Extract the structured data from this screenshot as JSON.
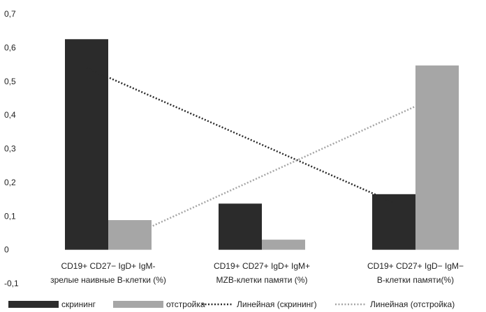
{
  "chart_data": {
    "type": "bar",
    "categories": [
      [
        "CD19+ CD27−  IgD+ IgM-",
        "зрелые наивные B-клетки (%)"
      ],
      [
        "CD19+ CD27+  IgD+ IgM+",
        "MZB-клетки памяти (%)"
      ],
      [
        "CD19+ CD27+  IgD−  IgM−",
        "B-клетки памяти(%)"
      ]
    ],
    "series": [
      {
        "name": "скрининг",
        "values": [
          0.625,
          0.137,
          0.165
        ],
        "color": "#2b2b2b"
      },
      {
        "name": "отстройка",
        "values": [
          0.088,
          0.03,
          0.547
        ],
        "color": "#a6a6a6"
      }
    ],
    "trendlines": [
      {
        "name": "Линейная (скрининг)",
        "series_index": 0,
        "start": 0.54,
        "end": 0.14,
        "color": "#2b2b2b"
      },
      {
        "name": "Линейная (отстройка)",
        "series_index": 1,
        "start": 0.04,
        "end": 0.455,
        "color": "#a6a6a6"
      }
    ],
    "y_ticks": [
      "-0,1",
      "0",
      "0,1",
      "0,2",
      "0,3",
      "0,4",
      "0,5",
      "0,6",
      "0,7"
    ],
    "ylim": [
      -0.1,
      0.7
    ],
    "grid": false,
    "legend_position": "bottom",
    "title": "",
    "xlabel": "",
    "ylabel": ""
  }
}
